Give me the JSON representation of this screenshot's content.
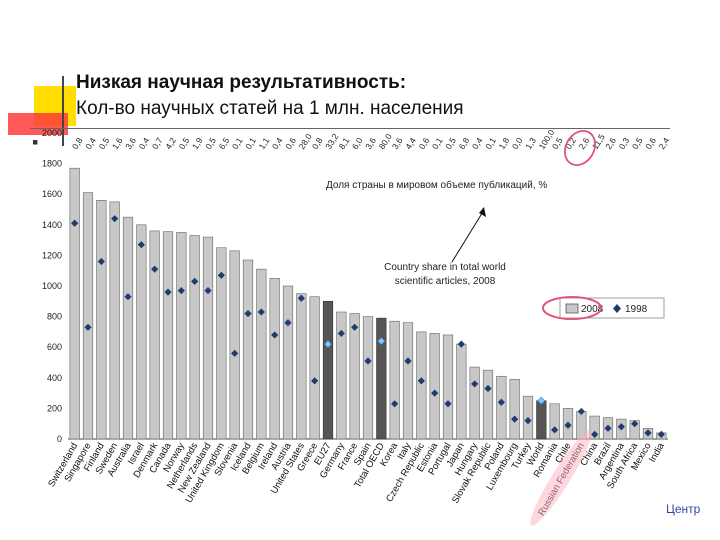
{
  "header": {
    "title": "Низкая научная результативность:",
    "subtitle": "Кол-во научных статей на 1 млн. населения"
  },
  "footer": {
    "text": "Центр"
  },
  "colors": {
    "bar_default": "#c8c8c8",
    "bar_highlight": "#555555",
    "marker_1998": "#1f3b70",
    "marker_highlight": "#7ec8ff",
    "circle": "#e05575"
  },
  "chart_data": {
    "type": "bar",
    "ylim": [
      0,
      2000
    ],
    "yticks": [
      "0",
      "200",
      "400",
      "600",
      "800",
      "1000",
      "1200",
      "1400",
      "1600",
      "1800",
      "2000"
    ],
    "legend": {
      "position": "top-right",
      "labels": [
        "2008",
        "1998"
      ]
    },
    "annotations": {
      "share_label": "Доля страны в мировом объеме публикаций, %",
      "country_share_note_line1": "Country share in total world",
      "country_share_note_line2": "scientific articles, 2008"
    },
    "categories": [
      "Switzerland",
      "Singapore",
      "Finland",
      "Sweden",
      "Australia",
      "Israel",
      "Denmark",
      "Canada",
      "Norway",
      "Netherlands",
      "New Zealand",
      "United Kingdom",
      "Slovenia",
      "Iceland",
      "Belgium",
      "Ireland",
      "Austria",
      "United States",
      "Greece",
      "EU27",
      "Germany",
      "France",
      "Spain",
      "Total OECD",
      "Korea",
      "Italy",
      "Czech Republic",
      "Estonia",
      "Portugal",
      "Japan",
      "Hungary",
      "Slovak Republic",
      "Poland",
      "Luxembourg",
      "Turkey",
      "World",
      "Romania",
      "Chile",
      "Russian Federation",
      "China",
      "Brazil",
      "Argentina",
      "South Africa",
      "Mexico",
      "India"
    ],
    "highlight_bars": [
      "EU27",
      "Total OECD",
      "World"
    ],
    "circled_category": "Russian Federation",
    "series": [
      {
        "name": "2008",
        "values": [
          1770,
          1610,
          1560,
          1550,
          1450,
          1400,
          1360,
          1355,
          1350,
          1330,
          1320,
          1250,
          1230,
          1170,
          1110,
          1050,
          1000,
          950,
          930,
          900,
          830,
          820,
          800,
          790,
          770,
          760,
          700,
          690,
          680,
          620,
          470,
          450,
          410,
          390,
          280,
          250,
          230,
          200,
          180,
          150,
          140,
          130,
          120,
          70,
          40
        ]
      },
      {
        "name": "1998",
        "values": [
          1410,
          730,
          1160,
          1440,
          930,
          1270,
          1110,
          960,
          970,
          1030,
          970,
          1070,
          560,
          820,
          830,
          680,
          760,
          920,
          380,
          620,
          690,
          730,
          510,
          640,
          230,
          510,
          380,
          300,
          230,
          620,
          360,
          330,
          240,
          130,
          120,
          250,
          60,
          90,
          180,
          30,
          70,
          80,
          100,
          40,
          30
        ]
      }
    ],
    "share_labels": [
      "0,8",
      "0,4",
      "0,5",
      "1,6",
      "3,6",
      "0,4",
      "0,7",
      "4,2",
      "0,5",
      "1,9",
      "0,5",
      "6,5",
      "0,1",
      "0,1",
      "1,1",
      "0,4",
      "0,6",
      "28,0",
      "0,8",
      "33,2",
      "8,1",
      "6,0",
      "3,6",
      "80,0",
      "3,6",
      "4,4",
      "0,6",
      "0,1",
      "0,5",
      "6,8",
      "0,4",
      "0,1",
      "1,8",
      "0,0",
      "1,3",
      "100,0",
      "0,5",
      "0,2",
      "2,6",
      "11,5",
      "2,6",
      "0,3",
      "0,5",
      "0,6",
      "2,4"
    ]
  }
}
